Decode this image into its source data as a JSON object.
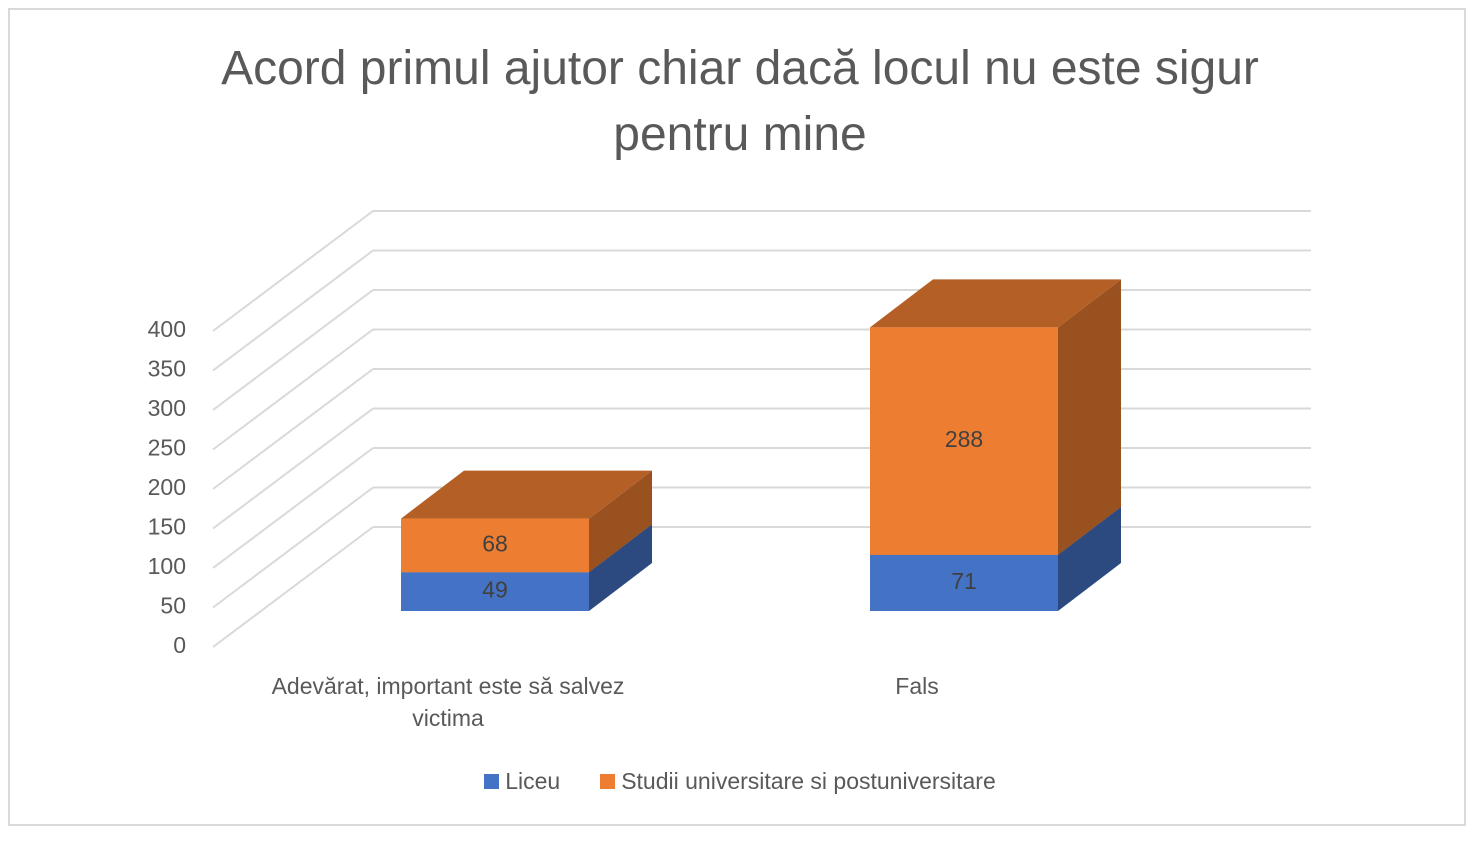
{
  "chart_data": {
    "type": "bar3d-stacked",
    "title": "Acord primul ajutor chiar dacă locul nu este sigur pentru mine",
    "categories": [
      "Adevărat, important este să salvez victima",
      "Fals"
    ],
    "series": [
      {
        "name": "Liceu",
        "color": "#4472c4",
        "values": [
          49,
          71
        ]
      },
      {
        "name": "Studii universitare si postuniversitare",
        "color": "#ed7d31",
        "values": [
          68,
          288
        ]
      }
    ],
    "ylim": [
      0,
      400
    ],
    "yticks": [
      0,
      50,
      100,
      150,
      200,
      250,
      300,
      350,
      400
    ],
    "grid": true,
    "legend": "bottom"
  }
}
